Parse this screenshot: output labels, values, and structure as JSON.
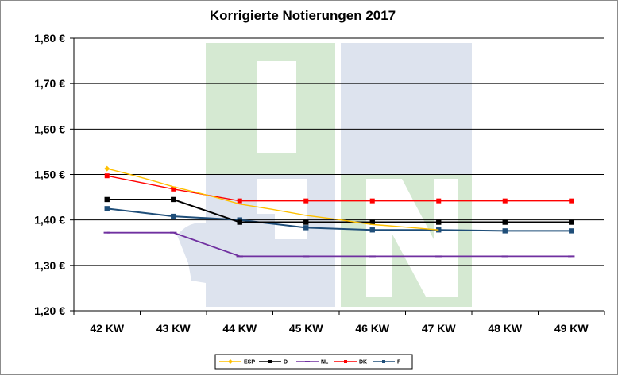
{
  "chart_data": {
    "type": "line",
    "title": "Korrigierte Notierungen 2017",
    "xlabel": "",
    "ylabel": "",
    "categories": [
      "42 KW",
      "43 KW",
      "44 KW",
      "45 KW",
      "46 KW",
      "47 KW",
      "48 KW",
      "49 KW"
    ],
    "y_tick_labels": [
      "1,20 €",
      "1,30 €",
      "1,40 €",
      "1,50 €",
      "1,60 €",
      "1,70 €",
      "1,80 €"
    ],
    "ylim": [
      1.2,
      1.8
    ],
    "grid": true,
    "legend_position": "bottom",
    "watermark": "ISN",
    "series": [
      {
        "name": "ESP",
        "color": "#FFC000",
        "marker": "diamond",
        "values": [
          1.513,
          1.473,
          1.435,
          1.41,
          1.39,
          1.378,
          null,
          null
        ]
      },
      {
        "name": "D",
        "color": "#000000",
        "marker": "square",
        "values": [
          1.445,
          1.445,
          1.395,
          1.395,
          1.395,
          1.395,
          1.395,
          1.395
        ]
      },
      {
        "name": "NL",
        "color": "#7030A0",
        "marker": "dash",
        "values": [
          1.372,
          1.372,
          1.32,
          1.32,
          1.32,
          1.32,
          1.32,
          1.32
        ]
      },
      {
        "name": "DK",
        "color": "#FF0000",
        "marker": "square",
        "values": [
          1.497,
          1.468,
          1.442,
          1.442,
          1.442,
          1.442,
          1.442,
          1.442
        ]
      },
      {
        "name": "F",
        "color": "#1F4E79",
        "marker": "square",
        "values": [
          1.425,
          1.408,
          1.4,
          1.383,
          1.378,
          1.378,
          1.376,
          1.376
        ]
      }
    ]
  }
}
